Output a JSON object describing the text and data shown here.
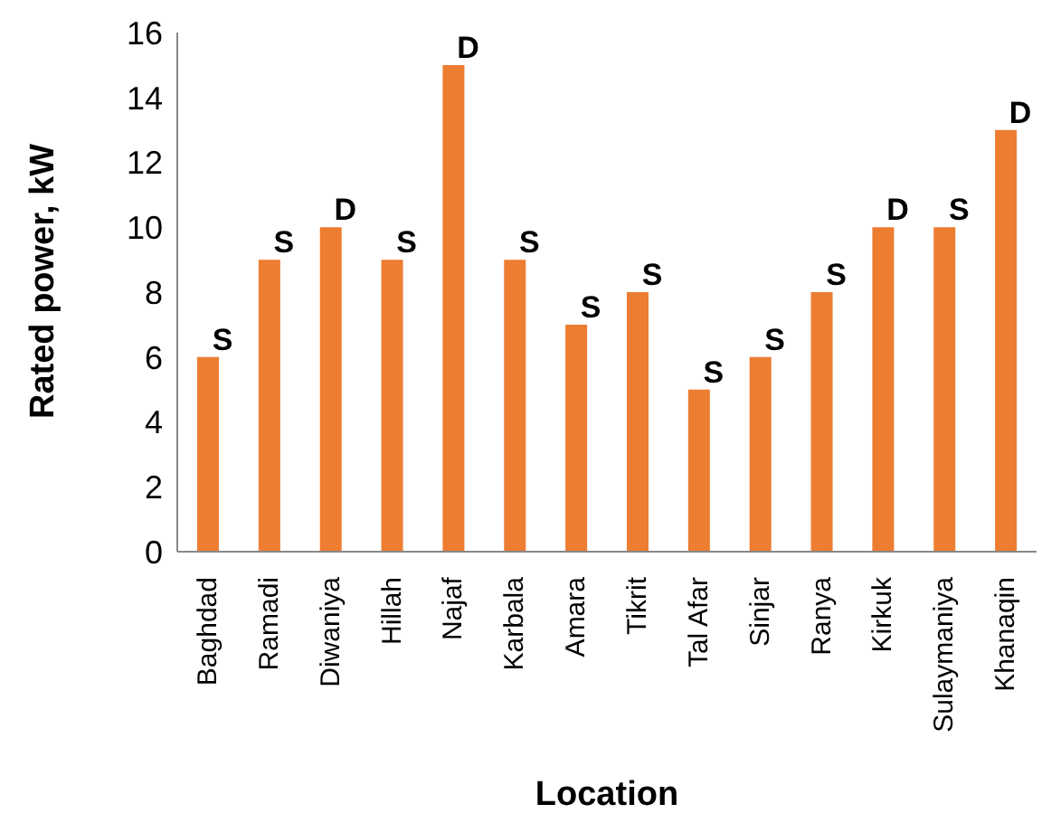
{
  "chart_data": {
    "type": "bar",
    "xlabel": "Location",
    "ylabel": "Rated power, kW",
    "categories": [
      "Baghdad",
      "Ramadi",
      "Diwaniya",
      "Hillah",
      "Najaf",
      "Karbala",
      "Amara",
      "Tikrit",
      "Tal Afar",
      "Sinjar",
      "Ranya",
      "Kirkuk",
      "Sulaymaniya",
      "Khanaqin"
    ],
    "values": [
      6,
      9,
      10,
      9,
      15,
      9,
      7,
      8,
      5,
      6,
      8,
      10,
      10,
      13
    ],
    "value_labels": [
      "S",
      "S",
      "D",
      "S",
      "D",
      "S",
      "S",
      "S",
      "S",
      "S",
      "S",
      "D",
      "S",
      "D"
    ],
    "color": "#ed7d31",
    "ylim": [
      0,
      16
    ],
    "yticks": [
      0,
      2,
      4,
      6,
      8,
      10,
      12,
      14,
      16
    ],
    "grid": false,
    "legend": false
  }
}
